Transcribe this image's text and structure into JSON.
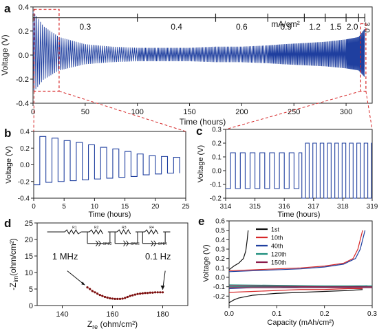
{
  "chart_data": [
    {
      "panel": "a",
      "type": "line",
      "xlabel": "Time (hours)",
      "ylabel": "Voltage (V)",
      "xlim": [
        0,
        325
      ],
      "ylim": [
        -0.4,
        0.4
      ],
      "xticks": [
        0,
        50,
        100,
        150,
        200,
        250,
        300
      ],
      "yticks": [
        -0.4,
        -0.2,
        0.0,
        0.2,
        0.4
      ],
      "current_unit": "mA/cm²",
      "segments": [
        {
          "label": "0.3",
          "start": 0,
          "end": 100
        },
        {
          "label": "0.4",
          "start": 100,
          "end": 175
        },
        {
          "label": "0.6",
          "start": 175,
          "end": 225
        },
        {
          "label": "0.9",
          "start": 225,
          "end": 260
        },
        {
          "label": "1.2",
          "start": 260,
          "end": 280
        },
        {
          "label": "1.5",
          "start": 280,
          "end": 300
        },
        {
          "label": "2.0",
          "start": 300,
          "end": 312
        },
        {
          "label": "3.0",
          "start": 312,
          "end": 318
        }
      ],
      "envelope": {
        "t": [
          0,
          3,
          10,
          25,
          50,
          75,
          100,
          125,
          150,
          175,
          200,
          225,
          240,
          260,
          280,
          300,
          312,
          318
        ],
        "amplitude": [
          0.36,
          0.33,
          0.24,
          0.15,
          0.09,
          0.07,
          0.06,
          0.06,
          0.06,
          0.07,
          0.07,
          0.08,
          0.09,
          0.1,
          0.11,
          0.13,
          0.15,
          0.22
        ]
      }
    },
    {
      "panel": "b",
      "type": "line",
      "xlabel": "Time (hours)",
      "ylabel": "Voltage (V)",
      "xlim": [
        0,
        25
      ],
      "ylim": [
        -0.4,
        0.4
      ],
      "xticks": [
        0,
        5,
        10,
        15,
        20,
        25
      ],
      "yticks": [
        -0.4,
        -0.2,
        0.0,
        0.2,
        0.4
      ],
      "half_period_hours": 1,
      "cycles": [
        {
          "up": 0.34,
          "down": -0.24
        },
        {
          "up": 0.32,
          "down": -0.21
        },
        {
          "up": 0.29,
          "down": -0.2
        },
        {
          "up": 0.27,
          "down": -0.19
        },
        {
          "up": 0.24,
          "down": -0.18
        },
        {
          "up": 0.21,
          "down": -0.17
        },
        {
          "up": 0.19,
          "down": -0.16
        },
        {
          "up": 0.16,
          "down": -0.15
        },
        {
          "up": 0.13,
          "down": -0.14
        },
        {
          "up": 0.11,
          "down": -0.12
        },
        {
          "up": 0.1,
          "down": -0.11
        },
        {
          "up": 0.09,
          "down": -0.1
        }
      ]
    },
    {
      "panel": "c",
      "type": "line",
      "xlabel": "Time (hours)",
      "ylabel": "Voltage (V)",
      "xlim": [
        314,
        319
      ],
      "ylim": [
        -0.2,
        0.3
      ],
      "xticks": [
        314,
        315,
        316,
        317,
        318,
        319
      ],
      "yticks": [
        -0.2,
        -0.1,
        0.0,
        0.1,
        0.2,
        0.3
      ],
      "segments": [
        {
          "start": 314,
          "end": 316.6,
          "half_period": 0.1667,
          "up": 0.13,
          "down": -0.13
        },
        {
          "start": 316.6,
          "end": 319,
          "half_period": 0.125,
          "up": 0.2,
          "down": -0.2
        }
      ]
    },
    {
      "panel": "d",
      "type": "scatter",
      "xlabel": "Z",
      "xlabel_sub": "re",
      "xlabel_unit": "(ohm/cm²)",
      "ylabel": "-Z",
      "ylabel_sub": "im",
      "ylabel_unit": "(ohm/cm²)",
      "xlim": [
        130,
        190
      ],
      "ylim": [
        0,
        25
      ],
      "xticks": [
        140,
        160,
        180
      ],
      "yticks": [
        0,
        5,
        10,
        15,
        20,
        25
      ],
      "annotations": [
        {
          "text": "1 MHz",
          "x": 150,
          "y": 6
        },
        {
          "text": "0.1 Hz",
          "x": 180,
          "y": 4
        }
      ],
      "circuit_labels": [
        "R1",
        "R2",
        "CPE2",
        "R3",
        "CPE3",
        "R4",
        "CPE4"
      ],
      "points": {
        "x": [
          150,
          151,
          152,
          153,
          154,
          155,
          156,
          157,
          158,
          159,
          160,
          161,
          162,
          163,
          164,
          165,
          166,
          167,
          168,
          169,
          170,
          171,
          172,
          173,
          174,
          175,
          176,
          177,
          178,
          179,
          180
        ],
        "y": [
          5.5,
          5.0,
          4.4,
          4.0,
          3.6,
          3.2,
          2.9,
          2.6,
          2.4,
          2.2,
          2.1,
          2.0,
          2.0,
          2.0,
          2.1,
          2.3,
          2.6,
          2.9,
          3.1,
          3.3,
          3.5,
          3.6,
          3.7,
          3.8,
          3.8,
          3.9,
          3.9,
          4.0,
          4.0,
          4.0,
          4.0
        ]
      }
    },
    {
      "panel": "e",
      "type": "line",
      "xlabel": "Capacity (mAh/cm²)",
      "ylabel": "Voltage (V)",
      "xlim": [
        0,
        0.3
      ],
      "ylim": [
        -0.3,
        0.6
      ],
      "xticks": [
        0.0,
        0.1,
        0.2,
        0.3
      ],
      "yticks": [
        -0.2,
        -0.1,
        0.0,
        0.1,
        0.2,
        0.3,
        0.4,
        0.5,
        0.6
      ],
      "legend_position": "top-left",
      "series": [
        {
          "name": "1st",
          "color": "#111111",
          "charge": {
            "x": [
              0,
              0.005,
              0.01,
              0.02,
              0.03,
              0.035,
              0.038,
              0.04
            ],
            "y": [
              0.08,
              0.1,
              0.12,
              0.15,
              0.2,
              0.28,
              0.4,
              0.5
            ]
          },
          "discharge": {
            "x": [
              0,
              0.01,
              0.02,
              0.05,
              0.1,
              0.15,
              0.2,
              0.25,
              0.28
            ],
            "y": [
              -0.27,
              -0.24,
              -0.22,
              -0.19,
              -0.17,
              -0.16,
              -0.15,
              -0.14,
              -0.13
            ]
          }
        },
        {
          "name": "10th",
          "color": "#d62728",
          "charge": {
            "x": [
              0,
              0.05,
              0.1,
              0.15,
              0.2,
              0.24,
              0.26,
              0.27,
              0.28
            ],
            "y": [
              0.07,
              0.08,
              0.09,
              0.1,
              0.12,
              0.15,
              0.2,
              0.3,
              0.5
            ]
          },
          "discharge": {
            "x": [
              0,
              0.05,
              0.1,
              0.15,
              0.2,
              0.25,
              0.28
            ],
            "y": [
              -0.16,
              -0.15,
              -0.14,
              -0.13,
              -0.13,
              -0.12,
              -0.12
            ]
          }
        },
        {
          "name": "40th",
          "color": "#1f3f9f",
          "charge": {
            "x": [
              0,
              0.05,
              0.1,
              0.15,
              0.2,
              0.24,
              0.265,
              0.275,
              0.285
            ],
            "y": [
              0.06,
              0.07,
              0.08,
              0.09,
              0.11,
              0.14,
              0.2,
              0.3,
              0.5
            ]
          },
          "discharge": {
            "x": [
              0,
              0.05,
              0.1,
              0.15,
              0.2,
              0.25,
              0.29
            ],
            "y": [
              -0.12,
              -0.11,
              -0.11,
              -0.1,
              -0.1,
              -0.1,
              -0.09
            ]
          }
        },
        {
          "name": "120th",
          "color": "#1a8c7a",
          "charge": {
            "x": [
              0,
              0.1,
              0.2,
              0.3
            ],
            "y": [
              -0.08,
              -0.085,
              -0.09,
              -0.09
            ]
          },
          "discharge": {
            "x": [
              0,
              0.1,
              0.2,
              0.3
            ],
            "y": [
              -0.1,
              -0.1,
              -0.1,
              -0.1
            ]
          }
        },
        {
          "name": "150th",
          "color": "#8b1a4a",
          "charge": {
            "x": [
              0,
              0.1,
              0.2,
              0.3
            ],
            "y": [
              -0.09,
              -0.095,
              -0.1,
              -0.1
            ]
          },
          "discharge": {
            "x": [
              0,
              0.1,
              0.2,
              0.3
            ],
            "y": [
              -0.11,
              -0.11,
              -0.11,
              -0.11
            ]
          }
        }
      ]
    }
  ],
  "panel_labels": {
    "a": "a",
    "b": "b",
    "c": "c",
    "d": "d",
    "e": "e"
  },
  "colors": {
    "trace": "#1f3f9f",
    "zoom": "#d62728",
    "fit": "#c0302c"
  }
}
